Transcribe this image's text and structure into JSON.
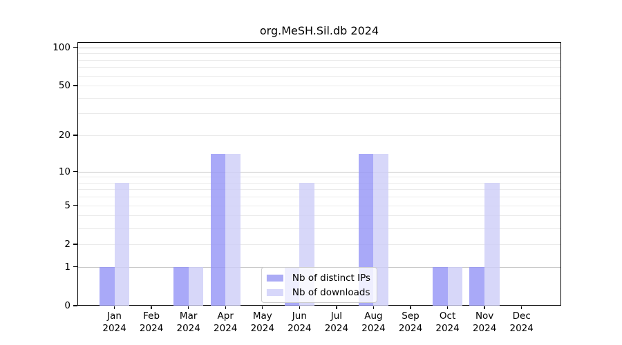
{
  "title": "org.MeSH.Sil.db 2024",
  "chart_data": {
    "type": "bar",
    "title": "org.MeSH.Sil.db 2024",
    "categories": [
      "Jan",
      "Feb",
      "Mar",
      "Apr",
      "May",
      "Jun",
      "Jul",
      "Aug",
      "Sep",
      "Oct",
      "Nov",
      "Dec"
    ],
    "x_year_label": "2024",
    "series": [
      {
        "name": "Nb of distinct IPs",
        "values": [
          1,
          0,
          1,
          14,
          0,
          1,
          0,
          14,
          0,
          1,
          1,
          0
        ],
        "fill": "rgba(148,148,246,0.8)",
        "legend_color": "#ababf5"
      },
      {
        "name": "Nb of downloads",
        "values": [
          8,
          0,
          1,
          14,
          0,
          8,
          0,
          14,
          0,
          1,
          8,
          0
        ],
        "fill": "rgba(205,205,248,0.8)",
        "legend_color": "#d7d7fa"
      }
    ],
    "y_scale": "log10(1+x)",
    "y_ticks": [
      0,
      1,
      2,
      5,
      10,
      20,
      50,
      100
    ],
    "y_major_gridlines": [
      1,
      10,
      100
    ],
    "y_minor_gridlines": [
      2,
      3,
      4,
      5,
      6,
      7,
      8,
      9,
      20,
      30,
      40,
      50,
      60,
      70,
      80,
      90
    ],
    "ylim": [
      0,
      110
    ],
    "grid": true,
    "legend_position": "lower center"
  },
  "colors": {
    "background": "#ffffff",
    "axis": "#000000",
    "grid_major": "#c6c6c6",
    "grid_minor": "#eaeaea",
    "legend_border": "#cccccc"
  }
}
